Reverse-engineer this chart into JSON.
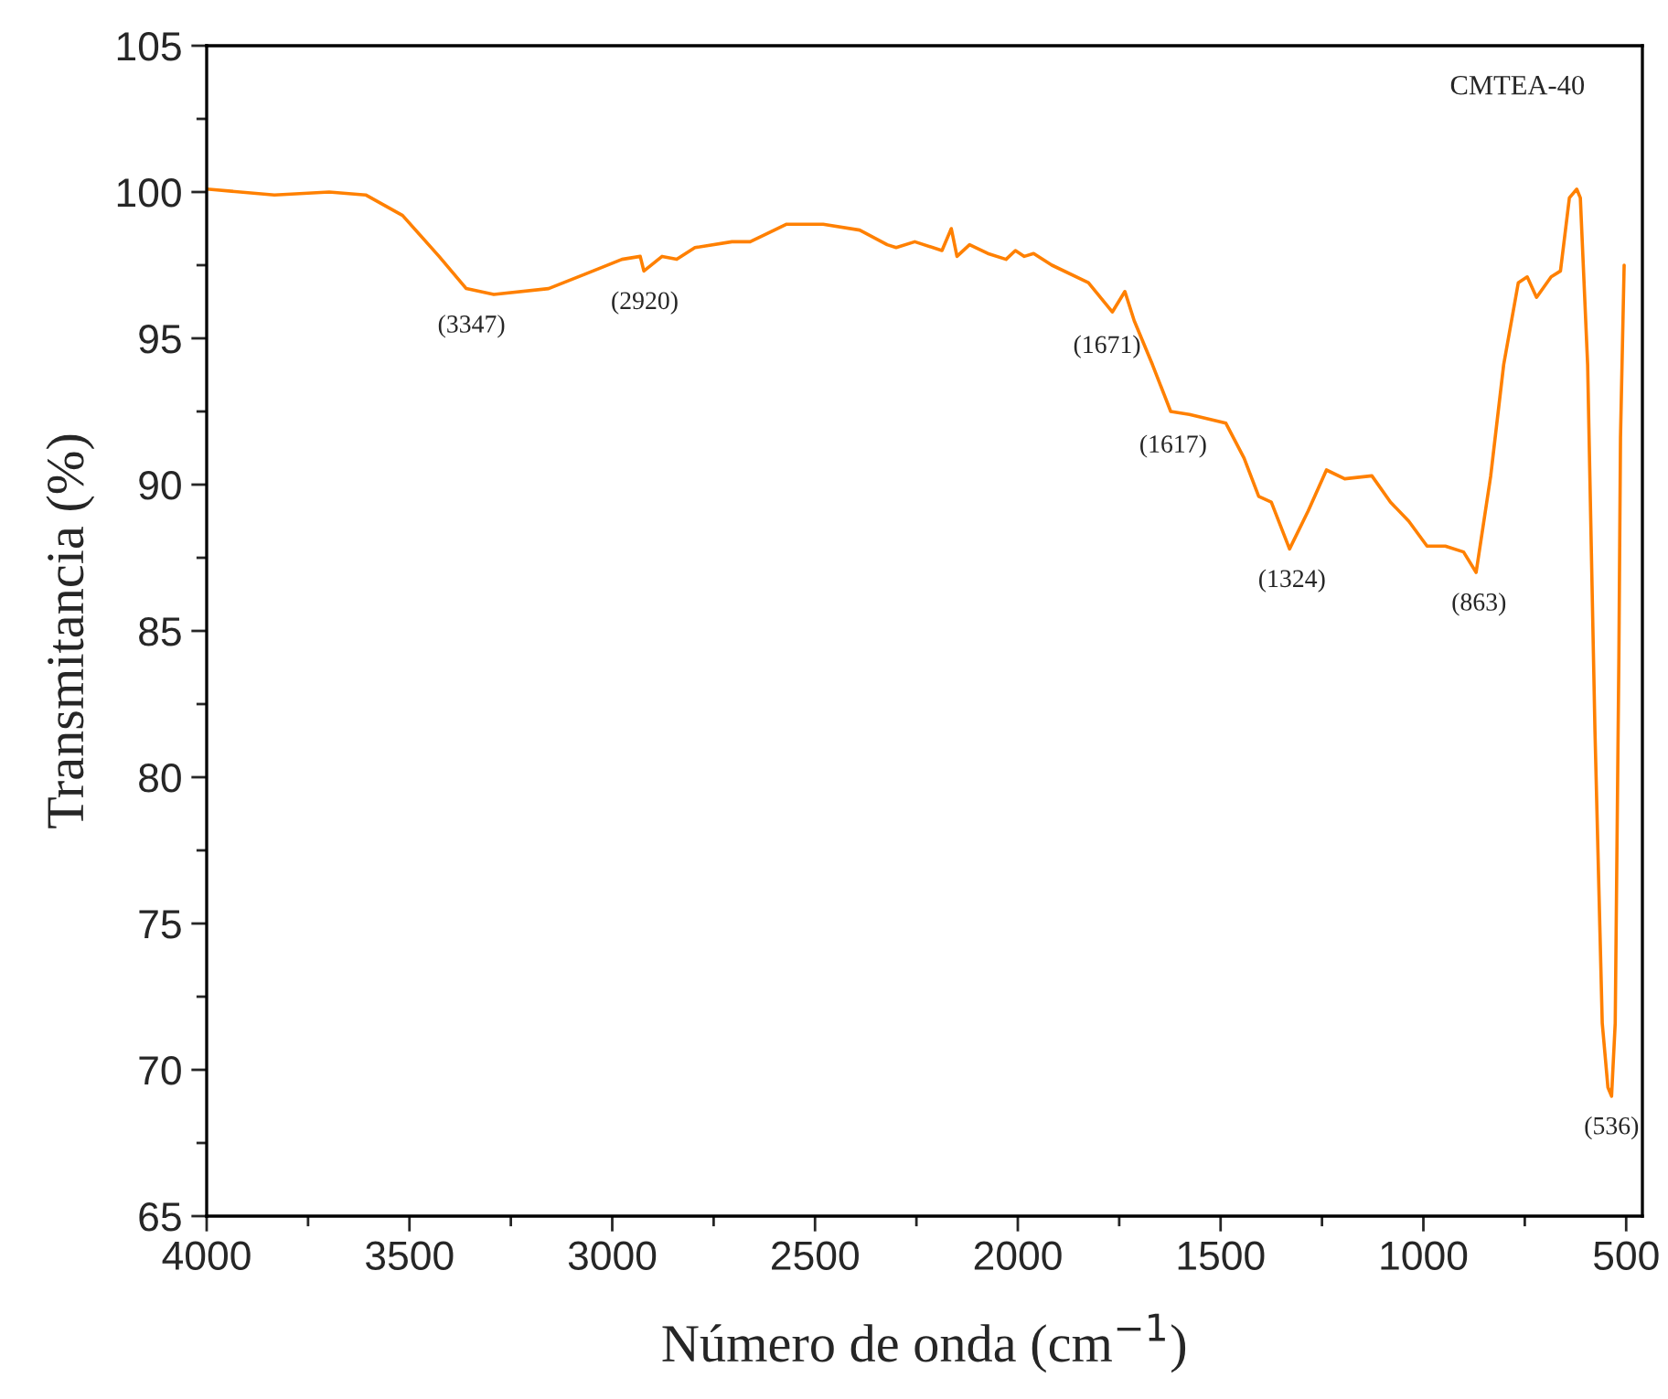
{
  "chart_data": {
    "type": "line",
    "xlabel": "Número de onda (cm$^{−1}$)",
    "ylabel": "Transmitancia (%)",
    "x": [
      4000,
      3833,
      3698,
      3608,
      3517,
      3427,
      3360,
      3292,
      3157,
      3066,
      2976,
      2931,
      2922,
      2877,
      2841,
      2796,
      2705,
      2660,
      2570,
      2480,
      2390,
      2322,
      2300,
      2254,
      2187,
      2164,
      2150,
      2119,
      2074,
      2029,
      2006,
      1984,
      1961,
      1916,
      1826,
      1767,
      1736,
      1713,
      1668,
      1623,
      1577,
      1487,
      1442,
      1406,
      1375,
      1330,
      1284,
      1239,
      1194,
      1127,
      1081,
      1036,
      991,
      946,
      901,
      870,
      834,
      802,
      766,
      744,
      721,
      685,
      662,
      640,
      622,
      613,
      595,
      577,
      559,
      545,
      536,
      527,
      518,
      514,
      505
    ],
    "series": [
      {
        "color": "#ff8000",
        "values": [
          100.1,
          99.9,
          100.0,
          99.9,
          99.2,
          97.8,
          96.7,
          96.5,
          96.7,
          97.2,
          97.7,
          97.8,
          97.3,
          97.8,
          97.7,
          98.1,
          98.3,
          98.3,
          98.9,
          98.9,
          98.7,
          98.2,
          98.1,
          98.3,
          98.0,
          98.75,
          97.8,
          98.2,
          97.9,
          97.7,
          98.0,
          97.8,
          97.9,
          97.5,
          96.9,
          95.9,
          96.6,
          95.6,
          94.1,
          92.5,
          92.4,
          92.1,
          90.9,
          89.6,
          89.4,
          87.8,
          89.1,
          90.5,
          90.2,
          90.3,
          89.4,
          88.75,
          87.9,
          87.9,
          87.7,
          87.0,
          90.3,
          94.1,
          96.9,
          97.1,
          96.4,
          97.1,
          97.3,
          99.8,
          100.1,
          99.8,
          94.1,
          81.6,
          71.6,
          69.4,
          69.1,
          71.6,
          84.1,
          91.6,
          97.5
        ]
      }
    ],
    "xlim": [
      4000,
      460
    ],
    "xticks": [
      4000,
      3500,
      3000,
      2500,
      2000,
      1500,
      1000,
      500
    ],
    "ylim": [
      65,
      105
    ],
    "yticks": [
      65,
      70,
      75,
      80,
      85,
      90,
      95,
      100,
      105
    ],
    "grid": false,
    "legend": false,
    "marker": "none",
    "line_style": "solid",
    "annotations": [
      "CMTEA-40",
      {
        "text": "(3347)",
        "x": 3347,
        "y": 96.5
      },
      {
        "text": "(2920)",
        "x": 2920,
        "y": 97.3
      },
      {
        "text": "(1671)",
        "x": 1780,
        "y": 95.8
      },
      {
        "text": "(1617)",
        "x": 1617,
        "y": 92.4
      },
      {
        "text": "(1324)",
        "x": 1324,
        "y": 87.8
      },
      {
        "text": "(863)",
        "x": 863,
        "y": 87.0
      },
      {
        "text": "(536)",
        "x": 536,
        "y": 69.1
      }
    ]
  }
}
